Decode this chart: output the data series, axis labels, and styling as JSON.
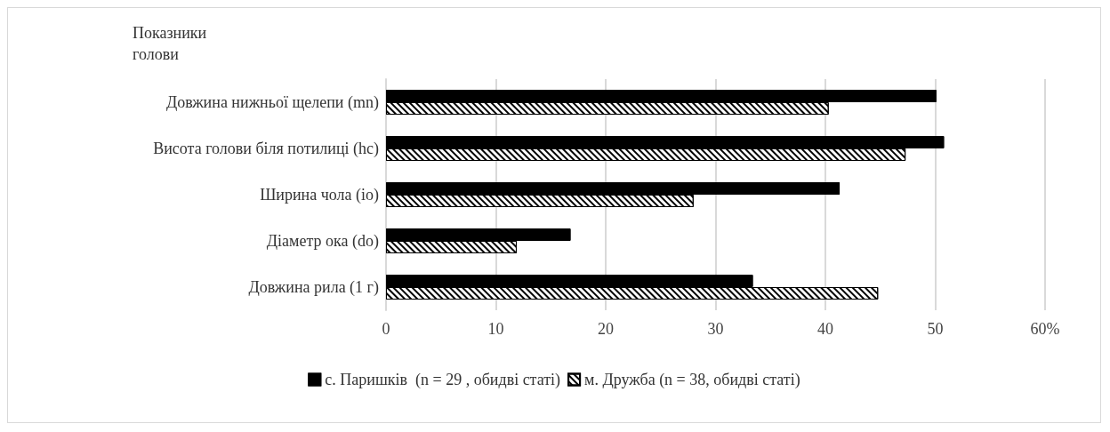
{
  "chart_data": {
    "type": "bar",
    "orientation": "horizontal",
    "ylabel": "Показники голови",
    "categories": [
      "Довжина нижньої щелепи (mn)",
      "Висота голови біля потилиці (hc)",
      "Ширина чола (io)",
      "Діаметр ока (do)",
      "Довжина рила (1 г)"
    ],
    "series": [
      {
        "name": "с. Паришків  (n = 29 , обидві статі)",
        "color": "#000000",
        "values": [
          50.1,
          50.8,
          41.3,
          16.8,
          33.4
        ]
      },
      {
        "name": "м. Дружба (n = 38, обидві статі)",
        "color": "#ffffff",
        "values": [
          40.3,
          47.3,
          28.0,
          11.9,
          44.8
        ]
      }
    ],
    "xlim": [
      0,
      60
    ],
    "xticks": [
      0,
      10,
      20,
      30,
      40,
      50,
      {
        "value": 60,
        "label": "60%"
      }
    ],
    "grid": "x",
    "legend": "bottom"
  }
}
